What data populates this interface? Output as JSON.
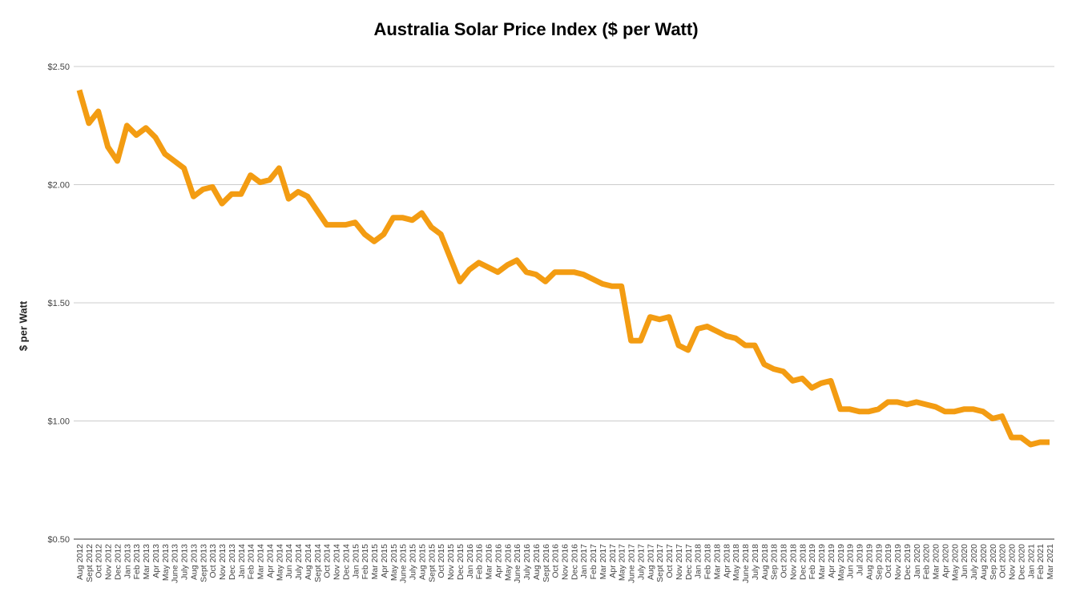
{
  "chart_data": {
    "type": "line",
    "title": "Australia Solar Price Index ($ per Watt)",
    "xlabel": "",
    "ylabel": "$ per Watt",
    "ylim": [
      0.5,
      2.5
    ],
    "y_ticks": [
      "$0.50",
      "$1.00",
      "$1.50",
      "$2.00",
      "$2.50"
    ],
    "y_tick_values": [
      0.5,
      1.0,
      1.5,
      2.0,
      2.5
    ],
    "grid": true,
    "legend": "none",
    "line_color": "#f39c12",
    "categories": [
      "Aug 2012",
      "Sept 2012",
      "Oct 2012",
      "Nov 2012",
      "Dec 2012",
      "Jan 2013",
      "Feb 2013",
      "Mar 2013",
      "Apr 2013",
      "May 2013",
      "June 2013",
      "July 2013",
      "Aug 2013",
      "Sept 2013",
      "Oct 2013",
      "Nov 2013",
      "Dec 2013",
      "Jan 2014",
      "Feb 2014",
      "Mar 2014",
      "Apr 2014",
      "May 2014",
      "Jun 2014",
      "July 2014",
      "Aug 2014",
      "Sept 2014",
      "Oct 2014",
      "Nov 2014",
      "Dec 2014",
      "Jan 2015",
      "Feb 2015",
      "Mar 2015",
      "Apr 2015",
      "May 2015",
      "June 2015",
      "July 2015",
      "Aug 2015",
      "Sept 2015",
      "Oct 2015",
      "Nov 2015",
      "Dec 2015",
      "Jan 2016",
      "Feb 2016",
      "Mar 2016",
      "Apr 2016",
      "May 2016",
      "June 2016",
      "July 2016",
      "Aug 2016",
      "Sept 2016",
      "Oct 2016",
      "Nov 2016",
      "Dec 2016",
      "Jan 2017",
      "Feb 2017",
      "Mar 2017",
      "Apr 2017",
      "May 2017",
      "June 2017",
      "July 2017",
      "Aug 2017",
      "Sept 2017",
      "Oct 2017",
      "Nov 2017",
      "Dec 2017",
      "Jan 2018",
      "Feb 2018",
      "Mar 2018",
      "Apr 2018",
      "May 2018",
      "June 2018",
      "July 2018",
      "Aug 2018",
      "Sep 2018",
      "Oct 2018",
      "Nov 2018",
      "Dec 2018",
      "Feb 2019",
      "Mar 2019",
      "Apr 2019",
      "May 2019",
      "Jun 2019",
      "Jul 2019",
      "Aug 2019",
      "Sep 2019",
      "Oct 2019",
      "Nov 2019",
      "Dec 2019",
      "Jan 2020",
      "Feb 2020",
      "Mar 2020",
      "Apr 2020",
      "May 2020",
      "Jun 2020",
      "July 2020",
      "Aug 2020",
      "Sep 2020",
      "Oct 2020",
      "Nov 2020",
      "Dec 2020",
      "Jan 2021",
      "Feb 2021",
      "Mar 2021"
    ],
    "series": [
      {
        "values": [
          2.4,
          2.26,
          2.31,
          2.16,
          2.1,
          2.25,
          2.21,
          2.24,
          2.2,
          2.13,
          2.1,
          2.07,
          1.95,
          1.98,
          1.99,
          1.92,
          1.96,
          1.96,
          2.04,
          2.01,
          2.02,
          2.07,
          1.94,
          1.97,
          1.95,
          1.89,
          1.83,
          1.83,
          1.83,
          1.84,
          1.79,
          1.76,
          1.79,
          1.86,
          1.86,
          1.85,
          1.88,
          1.82,
          1.79,
          1.69,
          1.59,
          1.64,
          1.67,
          1.65,
          1.63,
          1.66,
          1.68,
          1.63,
          1.62,
          1.59,
          1.63,
          1.63,
          1.63,
          1.62,
          1.6,
          1.58,
          1.57,
          1.57,
          1.34,
          1.34,
          1.44,
          1.43,
          1.44,
          1.32,
          1.3,
          1.39,
          1.4,
          1.38,
          1.36,
          1.35,
          1.32,
          1.32,
          1.24,
          1.22,
          1.21,
          1.17,
          1.18,
          1.14,
          1.16,
          1.17,
          1.05,
          1.05,
          1.04,
          1.04,
          1.05,
          1.08,
          1.08,
          1.07,
          1.08,
          1.07,
          1.06,
          1.04,
          1.04,
          1.05,
          1.05,
          1.04,
          1.01,
          1.02,
          0.93,
          0.93,
          0.9,
          0.91,
          0.91
        ]
      }
    ]
  }
}
